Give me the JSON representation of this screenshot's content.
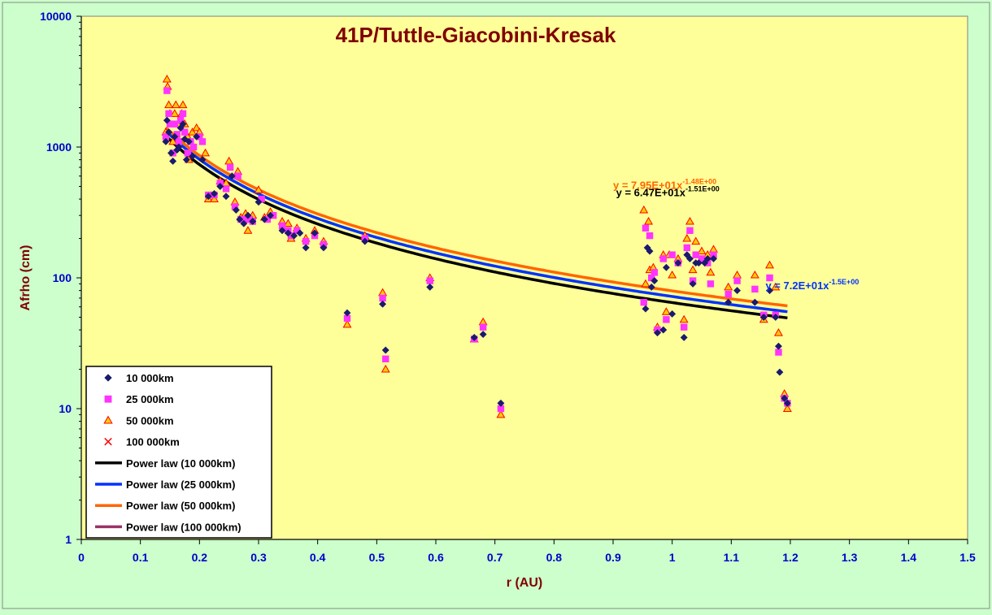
{
  "chart_data": {
    "type": "scatter",
    "title": "41P/Tuttle-Giacobini-Kresak",
    "xlabel": "r (AU)",
    "ylabel": "Afrho (cm)",
    "xlim": [
      0,
      1.5
    ],
    "ylim": [
      1,
      10000
    ],
    "yscale": "log",
    "x_ticks": [
      "0",
      "0.1",
      "0.2",
      "0.3",
      "0.4",
      "0.5",
      "0.6",
      "0.7",
      "0.8",
      "0.9",
      "1",
      "1.1",
      "1.2",
      "1.3",
      "1.4",
      "1.5"
    ],
    "y_ticks": [
      "1",
      "10",
      "100",
      "1000",
      "10000"
    ],
    "legend_position": "bottom-left",
    "colors": {
      "background": "#ccffcc",
      "plot_area": "#ffff99",
      "series_10k": "#1a1a6e",
      "series_25k": "#ff33ff",
      "series_50k_fill": "#ffcc00",
      "series_50k_edge": "#ff0000",
      "series_100k": "#ff0000",
      "fit_10k": "#000000",
      "fit_25k": "#0033ff",
      "fit_50k": "#ff6600",
      "fit_100k": "#993366",
      "title": "#800000",
      "axis_label": "#800000",
      "tick_label": "#0000cc"
    },
    "series": [
      {
        "name": "10 000km",
        "marker": "diamond",
        "points": [
          [
            0.143,
            1100
          ],
          [
            0.145,
            1600
          ],
          [
            0.148,
            1300
          ],
          [
            0.152,
            900
          ],
          [
            0.155,
            780
          ],
          [
            0.158,
            1200
          ],
          [
            0.162,
            950
          ],
          [
            0.165,
            1000
          ],
          [
            0.168,
            1400
          ],
          [
            0.172,
            1500
          ],
          [
            0.175,
            1150
          ],
          [
            0.178,
            800
          ],
          [
            0.182,
            1100
          ],
          [
            0.188,
            850
          ],
          [
            0.195,
            1200
          ],
          [
            0.205,
            800
          ],
          [
            0.215,
            420
          ],
          [
            0.225,
            440
          ],
          [
            0.235,
            500
          ],
          [
            0.245,
            420
          ],
          [
            0.255,
            600
          ],
          [
            0.262,
            330
          ],
          [
            0.268,
            280
          ],
          [
            0.275,
            260
          ],
          [
            0.282,
            300
          ],
          [
            0.29,
            270
          ],
          [
            0.3,
            380
          ],
          [
            0.31,
            280
          ],
          [
            0.32,
            300
          ],
          [
            0.34,
            230
          ],
          [
            0.35,
            220
          ],
          [
            0.36,
            210
          ],
          [
            0.37,
            220
          ],
          [
            0.38,
            170
          ],
          [
            0.395,
            220
          ],
          [
            0.41,
            170
          ],
          [
            0.45,
            54
          ],
          [
            0.48,
            190
          ],
          [
            0.51,
            63
          ],
          [
            0.515,
            28
          ],
          [
            0.59,
            85
          ],
          [
            0.665,
            35
          ],
          [
            0.68,
            37
          ],
          [
            0.71,
            11
          ],
          [
            0.955,
            58
          ],
          [
            0.958,
            170
          ],
          [
            0.962,
            160
          ],
          [
            0.965,
            85
          ],
          [
            0.97,
            95
          ],
          [
            0.975,
            38
          ],
          [
            0.985,
            40
          ],
          [
            0.99,
            120
          ],
          [
            1.0,
            53
          ],
          [
            1.01,
            130
          ],
          [
            1.02,
            35
          ],
          [
            1.025,
            150
          ],
          [
            1.03,
            140
          ],
          [
            1.035,
            90
          ],
          [
            1.04,
            130
          ],
          [
            1.045,
            130
          ],
          [
            1.055,
            130
          ],
          [
            1.06,
            140
          ],
          [
            1.07,
            140
          ],
          [
            1.095,
            65
          ],
          [
            1.11,
            80
          ],
          [
            1.14,
            65
          ],
          [
            1.155,
            50
          ],
          [
            1.165,
            80
          ],
          [
            1.175,
            50
          ],
          [
            1.18,
            30
          ],
          [
            1.182,
            19
          ],
          [
            1.19,
            12
          ],
          [
            1.195,
            11
          ]
        ]
      },
      {
        "name": "25 000km",
        "marker": "square",
        "points": [
          [
            0.143,
            1200
          ],
          [
            0.145,
            2700
          ],
          [
            0.148,
            1800
          ],
          [
            0.15,
            1500
          ],
          [
            0.155,
            900
          ],
          [
            0.158,
            1500
          ],
          [
            0.162,
            1250
          ],
          [
            0.165,
            1100
          ],
          [
            0.168,
            1600
          ],
          [
            0.172,
            1800
          ],
          [
            0.175,
            1300
          ],
          [
            0.18,
            900
          ],
          [
            0.185,
            1100
          ],
          [
            0.19,
            1000
          ],
          [
            0.2,
            1200
          ],
          [
            0.205,
            1100
          ],
          [
            0.215,
            430
          ],
          [
            0.225,
            430
          ],
          [
            0.235,
            530
          ],
          [
            0.245,
            480
          ],
          [
            0.252,
            700
          ],
          [
            0.26,
            350
          ],
          [
            0.265,
            600
          ],
          [
            0.27,
            280
          ],
          [
            0.278,
            280
          ],
          [
            0.285,
            280
          ],
          [
            0.29,
            270
          ],
          [
            0.305,
            400
          ],
          [
            0.315,
            280
          ],
          [
            0.325,
            300
          ],
          [
            0.34,
            250
          ],
          [
            0.35,
            230
          ],
          [
            0.355,
            210
          ],
          [
            0.365,
            230
          ],
          [
            0.38,
            190
          ],
          [
            0.395,
            210
          ],
          [
            0.41,
            180
          ],
          [
            0.45,
            49
          ],
          [
            0.48,
            200
          ],
          [
            0.51,
            70
          ],
          [
            0.515,
            24
          ],
          [
            0.59,
            95
          ],
          [
            0.665,
            34
          ],
          [
            0.68,
            42
          ],
          [
            0.71,
            10
          ],
          [
            0.952,
            65
          ],
          [
            0.955,
            240
          ],
          [
            0.962,
            210
          ],
          [
            0.965,
            100
          ],
          [
            0.97,
            110
          ],
          [
            0.975,
            40
          ],
          [
            0.985,
            140
          ],
          [
            0.99,
            48
          ],
          [
            1.0,
            150
          ],
          [
            1.01,
            130
          ],
          [
            1.02,
            42
          ],
          [
            1.025,
            170
          ],
          [
            1.03,
            230
          ],
          [
            1.035,
            95
          ],
          [
            1.04,
            150
          ],
          [
            1.05,
            140
          ],
          [
            1.06,
            130
          ],
          [
            1.065,
            90
          ],
          [
            1.07,
            150
          ],
          [
            1.095,
            75
          ],
          [
            1.11,
            95
          ],
          [
            1.14,
            82
          ],
          [
            1.155,
            52
          ],
          [
            1.165,
            100
          ],
          [
            1.175,
            52
          ],
          [
            1.18,
            27
          ],
          [
            1.19,
            12
          ],
          [
            1.195,
            11
          ]
        ]
      },
      {
        "name": "50 000km",
        "marker": "triangle",
        "points": [
          [
            0.143,
            1300
          ],
          [
            0.145,
            3300
          ],
          [
            0.146,
            2900
          ],
          [
            0.148,
            2100
          ],
          [
            0.15,
            1800
          ],
          [
            0.155,
            1100
          ],
          [
            0.158,
            1800
          ],
          [
            0.16,
            2100
          ],
          [
            0.165,
            1500
          ],
          [
            0.17,
            1800
          ],
          [
            0.172,
            2100
          ],
          [
            0.175,
            1500
          ],
          [
            0.18,
            1200
          ],
          [
            0.182,
            800
          ],
          [
            0.188,
            1300
          ],
          [
            0.195,
            1400
          ],
          [
            0.2,
            1300
          ],
          [
            0.21,
            900
          ],
          [
            0.215,
            400
          ],
          [
            0.225,
            400
          ],
          [
            0.235,
            550
          ],
          [
            0.245,
            530
          ],
          [
            0.25,
            780
          ],
          [
            0.26,
            380
          ],
          [
            0.265,
            650
          ],
          [
            0.27,
            290
          ],
          [
            0.278,
            310
          ],
          [
            0.282,
            230
          ],
          [
            0.29,
            300
          ],
          [
            0.3,
            470
          ],
          [
            0.31,
            290
          ],
          [
            0.32,
            320
          ],
          [
            0.34,
            270
          ],
          [
            0.35,
            260
          ],
          [
            0.355,
            200
          ],
          [
            0.365,
            240
          ],
          [
            0.38,
            200
          ],
          [
            0.395,
            230
          ],
          [
            0.41,
            190
          ],
          [
            0.45,
            44
          ],
          [
            0.48,
            210
          ],
          [
            0.51,
            77
          ],
          [
            0.515,
            20
          ],
          [
            0.59,
            100
          ],
          [
            0.665,
            34
          ],
          [
            0.68,
            46
          ],
          [
            0.71,
            9
          ],
          [
            0.952,
            330
          ],
          [
            0.955,
            90
          ],
          [
            0.96,
            270
          ],
          [
            0.962,
            115
          ],
          [
            0.968,
            120
          ],
          [
            0.975,
            42
          ],
          [
            0.985,
            150
          ],
          [
            0.99,
            55
          ],
          [
            0.995,
            150
          ],
          [
            1.0,
            105
          ],
          [
            1.01,
            140
          ],
          [
            1.02,
            48
          ],
          [
            1.025,
            200
          ],
          [
            1.03,
            270
          ],
          [
            1.035,
            115
          ],
          [
            1.04,
            190
          ],
          [
            1.05,
            160
          ],
          [
            1.06,
            150
          ],
          [
            1.065,
            110
          ],
          [
            1.07,
            165
          ],
          [
            1.095,
            85
          ],
          [
            1.11,
            105
          ],
          [
            1.14,
            105
          ],
          [
            1.155,
            48
          ],
          [
            1.165,
            125
          ],
          [
            1.175,
            85
          ],
          [
            1.18,
            38
          ],
          [
            1.19,
            13
          ],
          [
            1.195,
            10
          ]
        ]
      },
      {
        "name": "100 000km",
        "marker": "x",
        "points": []
      }
    ],
    "fits": [
      {
        "name": "Power law (10 000km)",
        "a": 64.7,
        "b": -1.51,
        "x_range": [
          0.143,
          1.195
        ],
        "label": ""
      },
      {
        "name": "Power law (25 000km)",
        "a": 72,
        "b": -1.5,
        "x_range": [
          0.143,
          1.195
        ],
        "label": ""
      },
      {
        "name": "Power law (50 000km)",
        "a": 79.5,
        "b": -1.48,
        "x_range": [
          0.143,
          1.195
        ],
        "label": ""
      },
      {
        "name": "Power law (100 000km)",
        "a": 0,
        "b": 0,
        "x_range": [
          0.143,
          1.195
        ],
        "label": ""
      }
    ],
    "annotations": [
      {
        "id": "eq-50k",
        "base": "y = 7.95E+01x",
        "exp": "-1.48E+00",
        "anchor_x": 0.9,
        "anchor_y": 480,
        "color": "#ff6600"
      },
      {
        "id": "eq-10k",
        "base": "y = 6.47E+01x",
        "exp": "-1.51E+00",
        "anchor_x": 0.905,
        "anchor_y": 420,
        "color": "#000000"
      },
      {
        "id": "eq-25k",
        "base": "y = 7.2E+01x",
        "exp": "-1.5E+00",
        "anchor_x": 1.158,
        "anchor_y": 82,
        "color": "#0033ff"
      }
    ]
  }
}
